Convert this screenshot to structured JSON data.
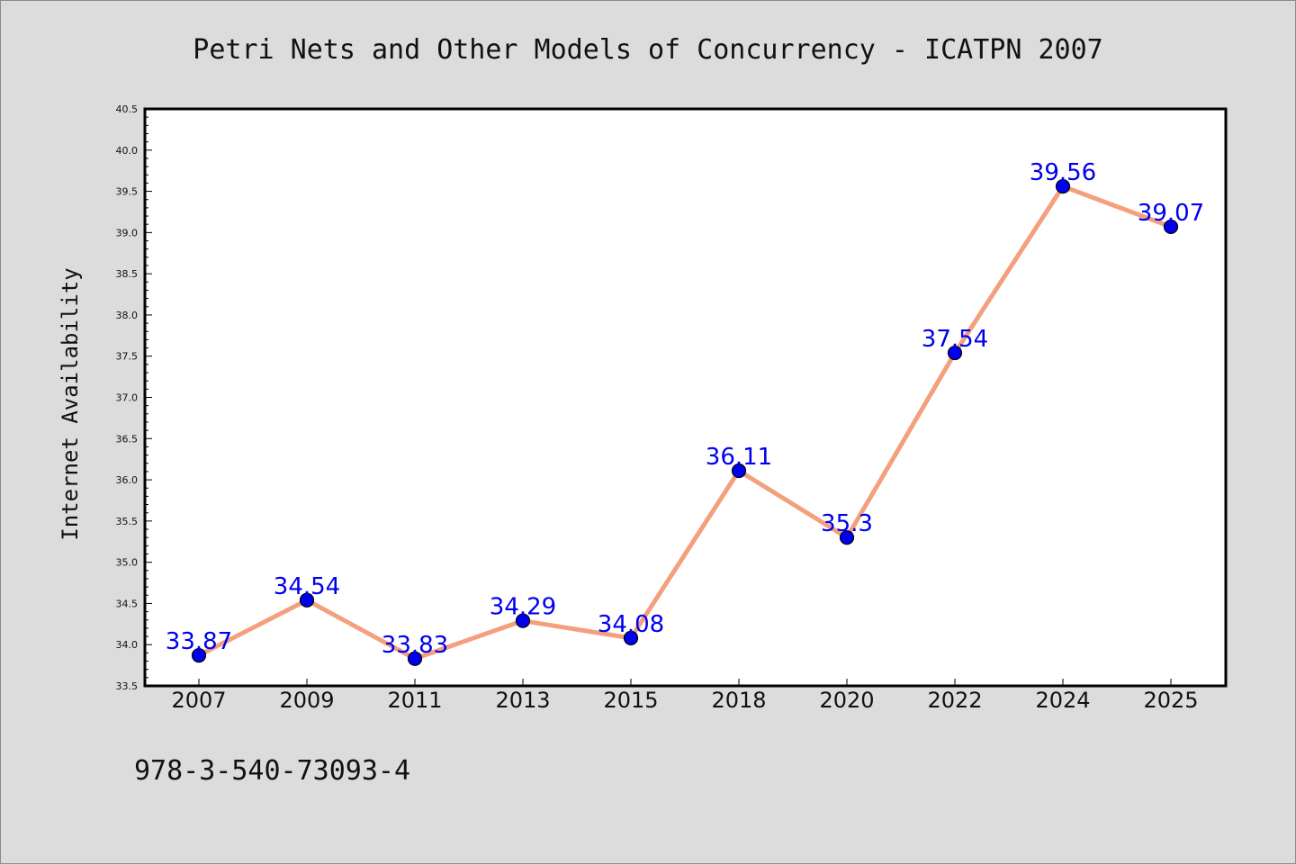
{
  "chart_data": {
    "type": "line",
    "title": "Petri Nets and Other Models of Concurrency - ICATPN 2007",
    "ylabel": "Internet Availability",
    "xlabel": "",
    "categories": [
      "2007",
      "2009",
      "2011",
      "2013",
      "2015",
      "2018",
      "2020",
      "2022",
      "2024",
      "2025"
    ],
    "series": [
      {
        "values": [
          33.87,
          34.54,
          33.83,
          34.29,
          34.08,
          36.11,
          35.3,
          37.54,
          39.56,
          39.07
        ]
      }
    ],
    "data_labels": [
      "33.87",
      "34.54",
      "33.83",
      "34.29",
      "34.08",
      "36.11",
      "35.3",
      "37.54",
      "39.56",
      "39.07"
    ],
    "ylim": [
      33.5,
      40.5
    ],
    "yticks": [
      "33.5",
      "34.0",
      "34.5",
      "35.0",
      "35.5",
      "36.0",
      "36.5",
      "37.0",
      "37.5",
      "38.0",
      "38.5",
      "39.0",
      "39.5",
      "40.0",
      "40.5"
    ],
    "grid": false,
    "legend": "none",
    "colors": {
      "line": "#f4a07e",
      "marker": "#0000ee",
      "marker_edge": "#000000",
      "label": "#0000ee",
      "background": "#dcdcdc",
      "plot_area": "#ffffff"
    }
  },
  "footer_text": "978-3-540-73093-4"
}
